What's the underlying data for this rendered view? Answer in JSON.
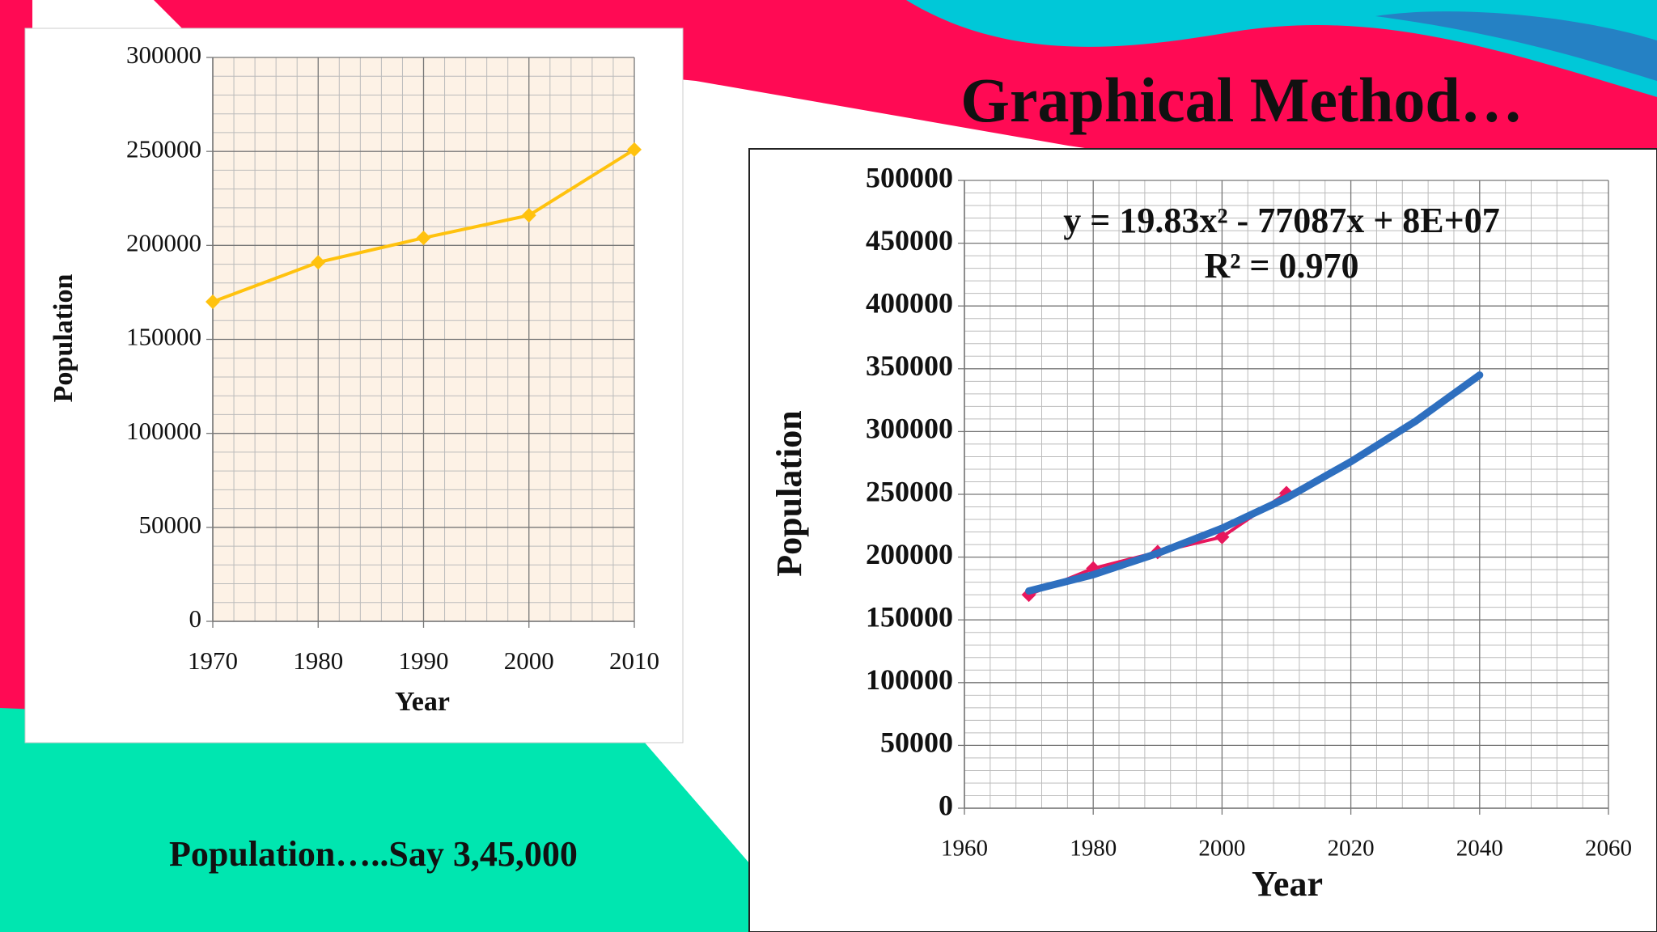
{
  "slide": {
    "title": "Graphical Method…",
    "note": "Population…..Say 3,45,000"
  },
  "chart_data": [
    {
      "type": "line",
      "x_label": "Year",
      "y_label": "Population",
      "x": [
        1970,
        1980,
        1990,
        2000,
        2010
      ],
      "series": [
        {
          "color": "#ffc20e",
          "values": [
            170000,
            191000,
            204000,
            216000,
            251000
          ]
        }
      ],
      "xlim": [
        1970,
        2010
      ],
      "xticks": [
        1970,
        1980,
        1990,
        2000,
        2010
      ],
      "ylim": [
        0,
        300000
      ],
      "yticks": [
        0,
        50000,
        100000,
        150000,
        200000,
        250000,
        300000
      ],
      "grid": true,
      "minor_divisions": 5,
      "background": "#fdf2e6"
    },
    {
      "type": "line",
      "x_label": "Year",
      "y_label": "Population",
      "annotations": [
        "y = 19.83x² - 77087x + 8E+07",
        "R² = 0.970"
      ],
      "series": [
        {
          "color": "#e8175d",
          "x": [
            1970,
            1980,
            1990,
            2000,
            2010
          ],
          "values": [
            170000,
            191000,
            204000,
            216000,
            251000
          ]
        },
        {
          "color": "#2e6fbf",
          "x": [
            1970,
            1980,
            1990,
            2000,
            2010,
            2020,
            2030,
            2040
          ],
          "values": [
            173000,
            186000,
            203000,
            223000,
            247000,
            276000,
            308000,
            345000
          ]
        }
      ],
      "xlim": [
        1960,
        2060
      ],
      "xticks": [
        1960,
        1980,
        2000,
        2020,
        2040,
        2060
      ],
      "ylim": [
        0,
        500000
      ],
      "yticks": [
        0,
        50000,
        100000,
        150000,
        200000,
        250000,
        300000,
        350000,
        400000,
        450000,
        500000
      ],
      "grid": true,
      "minor_divisions": 5,
      "background": "#ffffff"
    }
  ]
}
